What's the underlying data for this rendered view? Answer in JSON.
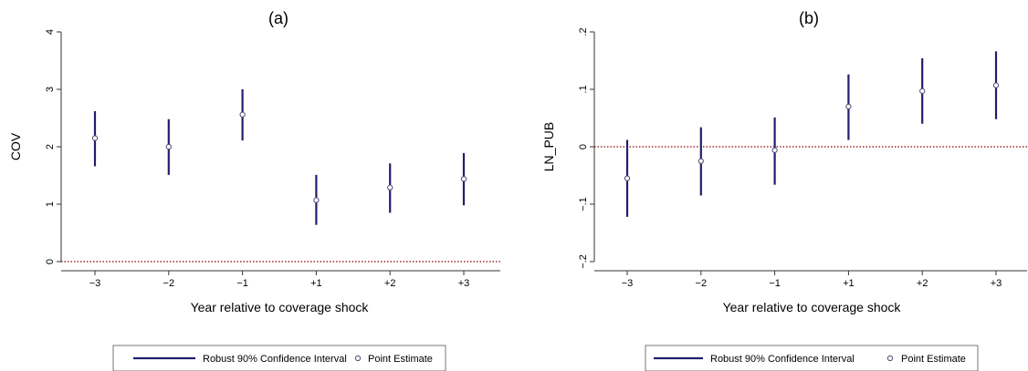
{
  "chart_data": [
    {
      "type": "scatter",
      "title": "(a)",
      "xlabel": "Year relative to coverage shock",
      "ylabel": "COV",
      "categories": [
        "−3",
        "−2",
        "−1",
        "+1",
        "+2",
        "+3"
      ],
      "ylim": [
        0,
        4
      ],
      "yticks": [
        "0",
        "1",
        "2",
        "3",
        "4"
      ],
      "ytick_values": [
        0,
        1,
        2,
        3,
        4
      ],
      "reference_line": 0,
      "point_estimates": [
        2.15,
        2.0,
        2.56,
        1.07,
        1.29,
        1.44
      ],
      "ci_lower": [
        1.66,
        1.51,
        2.11,
        0.64,
        0.85,
        0.98
      ],
      "ci_upper": [
        2.62,
        2.48,
        3.0,
        1.51,
        1.71,
        1.89
      ],
      "grid": false
    },
    {
      "type": "scatter",
      "title": "(b)",
      "xlabel": "Year relative to coverage shock",
      "ylabel": "LN_PUB",
      "categories": [
        "−3",
        "−2",
        "−1",
        "+1",
        "+2",
        "+3"
      ],
      "ylim": [
        -0.2,
        0.2
      ],
      "yticks": [
        "−.2",
        "−.1",
        "0",
        ".1",
        ".2"
      ],
      "ytick_values": [
        -0.2,
        -0.1,
        0,
        0.1,
        0.2
      ],
      "reference_line": 0,
      "point_estimates": [
        -0.055,
        -0.025,
        -0.006,
        0.07,
        0.097,
        0.107
      ],
      "ci_lower": [
        -0.122,
        -0.085,
        -0.066,
        0.012,
        0.04,
        0.048
      ],
      "ci_upper": [
        0.012,
        0.034,
        0.051,
        0.126,
        0.154,
        0.166
      ],
      "grid": false
    }
  ],
  "legend": {
    "ci_label": "Robust 90% Confidence Interval",
    "point_label": "Point Estimate",
    "placement": "bottom"
  },
  "colors": {
    "ci": "#1f1f6e",
    "reference": "#8b0000",
    "axis": "#333333",
    "point_stroke": "#55557a"
  }
}
